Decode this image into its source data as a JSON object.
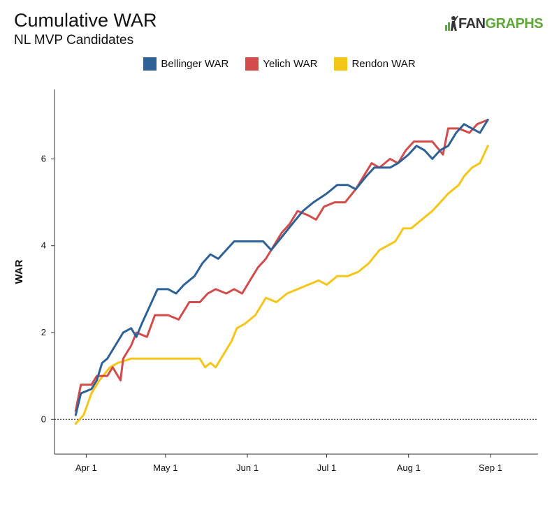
{
  "header": {
    "title": "Cumulative WAR",
    "subtitle": "NL MVP Candidates",
    "logo_text_a": "FAN",
    "logo_text_b": "GRAPHS",
    "logo_colors": {
      "a": "#333333",
      "b": "#5fa83a"
    }
  },
  "chart_data": {
    "type": "line",
    "title": "Cumulative WAR",
    "subtitle": "NL MVP Candidates",
    "xlabel": "",
    "ylabel": "WAR",
    "x_type": "date",
    "xlim": [
      "2019-03-20",
      "2019-09-19"
    ],
    "ylim": [
      -0.8,
      7.6
    ],
    "yticks": [
      0,
      2,
      4,
      6
    ],
    "xticks": [
      {
        "date": "2019-04-01",
        "label": "Apr 1"
      },
      {
        "date": "2019-05-01",
        "label": "May 1"
      },
      {
        "date": "2019-06-01",
        "label": "Jun 1"
      },
      {
        "date": "2019-07-01",
        "label": "Jul 1"
      },
      {
        "date": "2019-08-01",
        "label": "Aug 1"
      },
      {
        "date": "2019-09-01",
        "label": "Sep 1"
      }
    ],
    "zero_line": "dotted",
    "grid": false,
    "legend_position": "top-center",
    "series": [
      {
        "name": "Bellinger WAR",
        "color": "#2e6196",
        "points": [
          [
            "2019-03-28",
            0.1
          ],
          [
            "2019-03-30",
            0.6
          ],
          [
            "2019-04-03",
            0.7
          ],
          [
            "2019-04-05",
            0.9
          ],
          [
            "2019-04-07",
            1.3
          ],
          [
            "2019-04-09",
            1.4
          ],
          [
            "2019-04-12",
            1.7
          ],
          [
            "2019-04-15",
            2.0
          ],
          [
            "2019-04-18",
            2.1
          ],
          [
            "2019-04-20",
            1.9
          ],
          [
            "2019-04-22",
            2.2
          ],
          [
            "2019-04-25",
            2.6
          ],
          [
            "2019-04-28",
            3.0
          ],
          [
            "2019-05-02",
            3.0
          ],
          [
            "2019-05-05",
            2.9
          ],
          [
            "2019-05-08",
            3.1
          ],
          [
            "2019-05-12",
            3.3
          ],
          [
            "2019-05-15",
            3.6
          ],
          [
            "2019-05-18",
            3.8
          ],
          [
            "2019-05-21",
            3.7
          ],
          [
            "2019-05-24",
            3.9
          ],
          [
            "2019-05-27",
            4.1
          ],
          [
            "2019-06-07",
            4.1
          ],
          [
            "2019-06-10",
            3.9
          ],
          [
            "2019-06-14",
            4.2
          ],
          [
            "2019-06-18",
            4.5
          ],
          [
            "2019-06-22",
            4.8
          ],
          [
            "2019-06-26",
            5.0
          ],
          [
            "2019-07-01",
            5.2
          ],
          [
            "2019-07-05",
            5.4
          ],
          [
            "2019-07-09",
            5.4
          ],
          [
            "2019-07-12",
            5.3
          ],
          [
            "2019-07-16",
            5.6
          ],
          [
            "2019-07-19",
            5.8
          ],
          [
            "2019-07-22",
            5.8
          ],
          [
            "2019-07-25",
            5.8
          ],
          [
            "2019-07-28",
            5.9
          ],
          [
            "2019-08-01",
            6.1
          ],
          [
            "2019-08-04",
            6.3
          ],
          [
            "2019-08-07",
            6.2
          ],
          [
            "2019-08-10",
            6.0
          ],
          [
            "2019-08-13",
            6.2
          ],
          [
            "2019-08-16",
            6.3
          ],
          [
            "2019-08-19",
            6.6
          ],
          [
            "2019-08-22",
            6.8
          ],
          [
            "2019-08-25",
            6.7
          ],
          [
            "2019-08-28",
            6.6
          ],
          [
            "2019-08-31",
            6.9
          ]
        ]
      },
      {
        "name": "Yelich WAR",
        "color": "#d24c4c",
        "points": [
          [
            "2019-03-28",
            0.2
          ],
          [
            "2019-03-30",
            0.8
          ],
          [
            "2019-04-03",
            0.8
          ],
          [
            "2019-04-05",
            1.0
          ],
          [
            "2019-04-09",
            1.0
          ],
          [
            "2019-04-11",
            1.2
          ],
          [
            "2019-04-14",
            0.9
          ],
          [
            "2019-04-15",
            1.4
          ],
          [
            "2019-04-18",
            1.7
          ],
          [
            "2019-04-20",
            2.0
          ],
          [
            "2019-04-24",
            1.9
          ],
          [
            "2019-04-27",
            2.4
          ],
          [
            "2019-05-02",
            2.4
          ],
          [
            "2019-05-06",
            2.3
          ],
          [
            "2019-05-10",
            2.7
          ],
          [
            "2019-05-14",
            2.7
          ],
          [
            "2019-05-17",
            2.9
          ],
          [
            "2019-05-20",
            3.0
          ],
          [
            "2019-05-24",
            2.9
          ],
          [
            "2019-05-27",
            3.0
          ],
          [
            "2019-05-30",
            2.9
          ],
          [
            "2019-06-02",
            3.2
          ],
          [
            "2019-06-05",
            3.5
          ],
          [
            "2019-06-08",
            3.7
          ],
          [
            "2019-06-11",
            4.0
          ],
          [
            "2019-06-14",
            4.3
          ],
          [
            "2019-06-17",
            4.5
          ],
          [
            "2019-06-20",
            4.8
          ],
          [
            "2019-06-24",
            4.7
          ],
          [
            "2019-06-27",
            4.6
          ],
          [
            "2019-06-30",
            4.9
          ],
          [
            "2019-07-04",
            5.0
          ],
          [
            "2019-07-08",
            5.0
          ],
          [
            "2019-07-12",
            5.3
          ],
          [
            "2019-07-15",
            5.6
          ],
          [
            "2019-07-18",
            5.9
          ],
          [
            "2019-07-21",
            5.8
          ],
          [
            "2019-07-25",
            6.0
          ],
          [
            "2019-07-28",
            5.9
          ],
          [
            "2019-07-31",
            6.2
          ],
          [
            "2019-08-03",
            6.4
          ],
          [
            "2019-08-10",
            6.4
          ],
          [
            "2019-08-14",
            6.1
          ],
          [
            "2019-08-16",
            6.7
          ],
          [
            "2019-08-20",
            6.7
          ],
          [
            "2019-08-24",
            6.6
          ],
          [
            "2019-08-27",
            6.8
          ],
          [
            "2019-08-31",
            6.9
          ]
        ]
      },
      {
        "name": "Rendon WAR",
        "color": "#f5c518",
        "points": [
          [
            "2019-03-28",
            -0.1
          ],
          [
            "2019-03-31",
            0.1
          ],
          [
            "2019-04-03",
            0.6
          ],
          [
            "2019-04-06",
            0.9
          ],
          [
            "2019-04-10",
            1.2
          ],
          [
            "2019-04-13",
            1.3
          ],
          [
            "2019-04-18",
            1.4
          ],
          [
            "2019-05-01",
            1.4
          ],
          [
            "2019-05-08",
            1.4
          ],
          [
            "2019-05-14",
            1.4
          ],
          [
            "2019-05-16",
            1.2
          ],
          [
            "2019-05-18",
            1.3
          ],
          [
            "2019-05-20",
            1.2
          ],
          [
            "2019-05-23",
            1.5
          ],
          [
            "2019-05-26",
            1.8
          ],
          [
            "2019-05-28",
            2.1
          ],
          [
            "2019-05-31",
            2.2
          ],
          [
            "2019-06-04",
            2.4
          ],
          [
            "2019-06-08",
            2.8
          ],
          [
            "2019-06-12",
            2.7
          ],
          [
            "2019-06-16",
            2.9
          ],
          [
            "2019-06-20",
            3.0
          ],
          [
            "2019-06-24",
            3.1
          ],
          [
            "2019-06-28",
            3.2
          ],
          [
            "2019-07-01",
            3.1
          ],
          [
            "2019-07-05",
            3.3
          ],
          [
            "2019-07-09",
            3.3
          ],
          [
            "2019-07-13",
            3.4
          ],
          [
            "2019-07-17",
            3.6
          ],
          [
            "2019-07-21",
            3.9
          ],
          [
            "2019-07-24",
            4.0
          ],
          [
            "2019-07-27",
            4.1
          ],
          [
            "2019-07-30",
            4.4
          ],
          [
            "2019-08-02",
            4.4
          ],
          [
            "2019-08-06",
            4.6
          ],
          [
            "2019-08-10",
            4.8
          ],
          [
            "2019-08-13",
            5.0
          ],
          [
            "2019-08-16",
            5.2
          ],
          [
            "2019-08-20",
            5.4
          ],
          [
            "2019-08-22",
            5.6
          ],
          [
            "2019-08-25",
            5.8
          ],
          [
            "2019-08-28",
            5.9
          ],
          [
            "2019-08-31",
            6.3
          ]
        ]
      }
    ]
  }
}
